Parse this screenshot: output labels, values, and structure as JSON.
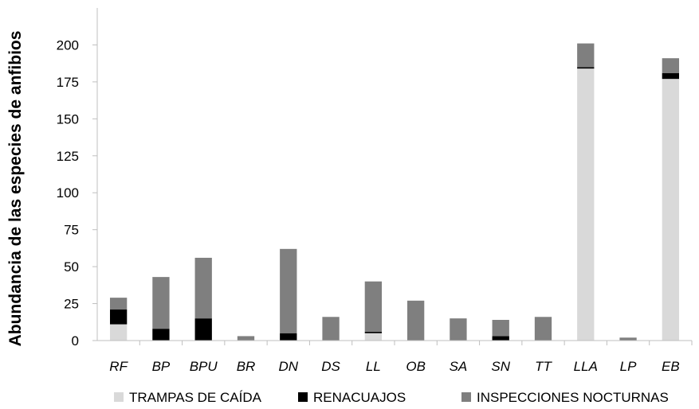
{
  "chart_data": {
    "type": "bar",
    "stacked": true,
    "categories": [
      "RF",
      "BP",
      "BPU",
      "BR",
      "DN",
      "DS",
      "LL",
      "OB",
      "SA",
      "SN",
      "TT",
      "LLA",
      "LP",
      "EB"
    ],
    "series": [
      {
        "name": "TRAMPAS DE CAÍDA",
        "color": "#d9d9d9",
        "values": [
          11,
          0,
          0,
          0,
          0,
          0,
          5,
          0,
          0,
          0,
          0,
          184,
          0,
          177
        ]
      },
      {
        "name": "RENACUAJOS",
        "color": "#000000",
        "values": [
          10,
          8,
          15,
          0,
          5,
          0,
          1,
          0,
          0,
          3,
          0,
          1,
          0,
          4
        ]
      },
      {
        "name": "INSPECCIONES NOCTURNAS",
        "color": "#7f7f7f",
        "values": [
          8,
          35,
          41,
          3,
          57,
          16,
          34,
          27,
          15,
          11,
          16,
          16,
          2,
          10
        ]
      }
    ],
    "ylabel": "Abundancia de las especies de anfibios",
    "xlabel": "",
    "ylim": [
      0,
      225
    ],
    "yticks": [
      0,
      25,
      50,
      75,
      100,
      125,
      150,
      175,
      200
    ],
    "grid": false,
    "legend": "bottom"
  }
}
